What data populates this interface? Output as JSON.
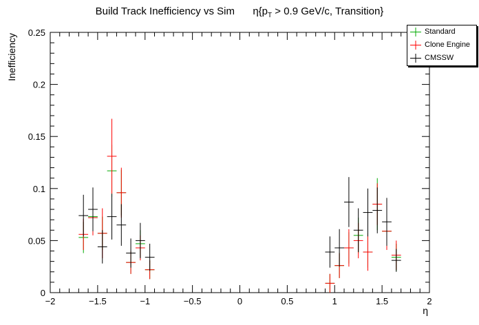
{
  "chart_data": {
    "type": "scatter",
    "title": "Build Track Inefficiency vs Sim",
    "title_parts": {
      "pre": "η{p",
      "sub": "T",
      "post": " > 0.9 GeV/c, Transition}"
    },
    "xlabel": "η",
    "ylabel": "Inefficiency",
    "xlim": [
      -2,
      2
    ],
    "ylim": [
      0,
      0.25
    ],
    "x_ticks": [
      -2,
      -1.5,
      -1,
      -0.5,
      0,
      0.5,
      1,
      1.5,
      2
    ],
    "x_tick_labels": [
      "−2",
      "−1.5",
      "−1",
      "−0.5",
      "0",
      "0.5",
      "1",
      "1.5",
      "2"
    ],
    "y_ticks": [
      0,
      0.05,
      0.1,
      0.15,
      0.2,
      0.25
    ],
    "y_tick_labels": [
      "0",
      "0.05",
      "0.1",
      "0.15",
      "0.2",
      "0.25"
    ],
    "grid": false,
    "legend_position": "top-right",
    "series": [
      {
        "name": "Standard",
        "color": "#00aa00",
        "points": [
          {
            "x": -1.65,
            "y": 0.053,
            "err": 0.015
          },
          {
            "x": -1.55,
            "y": 0.073,
            "err": 0.017
          },
          {
            "x": -1.45,
            "y": 0.057,
            "err": 0.016
          },
          {
            "x": -1.35,
            "y": 0.117,
            "err": 0.025
          },
          {
            "x": -1.25,
            "y": 0.096,
            "err": 0.022
          },
          {
            "x": -1.15,
            "y": 0.029,
            "err": 0.011
          },
          {
            "x": -1.05,
            "y": 0.047,
            "err": 0.013
          },
          {
            "x": -0.95,
            "y": 0.022,
            "err": 0.009
          },
          {
            "x": 0.95,
            "y": 0.009,
            "err": 0.009
          },
          {
            "x": 1.05,
            "y": 0.026,
            "err": 0.012
          },
          {
            "x": 1.15,
            "y": 0.043,
            "err": 0.015
          },
          {
            "x": 1.25,
            "y": 0.055,
            "err": 0.017
          },
          {
            "x": 1.35,
            "y": 0.039,
            "err": 0.015
          },
          {
            "x": 1.45,
            "y": 0.085,
            "err": 0.025
          },
          {
            "x": 1.55,
            "y": 0.059,
            "err": 0.018
          },
          {
            "x": 1.65,
            "y": 0.034,
            "err": 0.013
          }
        ]
      },
      {
        "name": "Clone Engine",
        "color": "#ff0000",
        "points": [
          {
            "x": -1.65,
            "y": 0.056,
            "err": 0.015
          },
          {
            "x": -1.55,
            "y": 0.072,
            "err": 0.017
          },
          {
            "x": -1.45,
            "y": 0.057,
            "err": 0.024
          },
          {
            "x": -1.35,
            "y": 0.131,
            "err": 0.036
          },
          {
            "x": -1.25,
            "y": 0.096,
            "err": 0.024
          },
          {
            "x": -1.15,
            "y": 0.029,
            "err": 0.011
          },
          {
            "x": -1.05,
            "y": 0.043,
            "err": 0.012
          },
          {
            "x": -0.95,
            "y": 0.022,
            "err": 0.009
          },
          {
            "x": 0.95,
            "y": 0.009,
            "err": 0.009
          },
          {
            "x": 1.05,
            "y": 0.026,
            "err": 0.012
          },
          {
            "x": 1.15,
            "y": 0.043,
            "err": 0.018
          },
          {
            "x": 1.25,
            "y": 0.05,
            "err": 0.017
          },
          {
            "x": 1.35,
            "y": 0.039,
            "err": 0.018
          },
          {
            "x": 1.45,
            "y": 0.085,
            "err": 0.02
          },
          {
            "x": 1.55,
            "y": 0.059,
            "err": 0.018
          },
          {
            "x": 1.65,
            "y": 0.036,
            "err": 0.014
          }
        ]
      },
      {
        "name": "CMSSW",
        "color": "#000000",
        "points": [
          {
            "x": -1.65,
            "y": 0.074,
            "err": 0.02
          },
          {
            "x": -1.55,
            "y": 0.08,
            "err": 0.021
          },
          {
            "x": -1.45,
            "y": 0.044,
            "err": 0.016
          },
          {
            "x": -1.35,
            "y": 0.073,
            "err": 0.022
          },
          {
            "x": -1.25,
            "y": 0.065,
            "err": 0.02
          },
          {
            "x": -1.15,
            "y": 0.038,
            "err": 0.014
          },
          {
            "x": -1.05,
            "y": 0.05,
            "err": 0.017
          },
          {
            "x": -0.95,
            "y": 0.034,
            "err": 0.013
          },
          {
            "x": 0.95,
            "y": 0.039,
            "err": 0.015
          },
          {
            "x": 1.05,
            "y": 0.043,
            "err": 0.018
          },
          {
            "x": 1.15,
            "y": 0.087,
            "err": 0.024
          },
          {
            "x": 1.25,
            "y": 0.06,
            "err": 0.021
          },
          {
            "x": 1.35,
            "y": 0.077,
            "err": 0.023
          },
          {
            "x": 1.45,
            "y": 0.079,
            "err": 0.022
          },
          {
            "x": 1.55,
            "y": 0.068,
            "err": 0.023
          },
          {
            "x": 1.65,
            "y": 0.031,
            "err": 0.011
          }
        ]
      }
    ]
  }
}
